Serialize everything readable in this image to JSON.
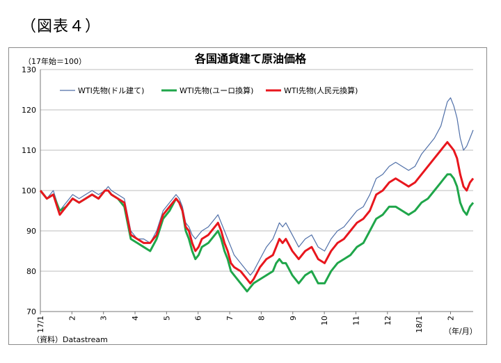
{
  "figure_label": "（図表４）",
  "source_note": "（資料）Datastream",
  "chart_data": {
    "type": "line",
    "title": "各国通貨建て原油価格",
    "y_unit_label": "（17年始＝100）",
    "x_unit_label": "（年/月）",
    "ylim": [
      70,
      130
    ],
    "yticks": [
      70,
      80,
      90,
      100,
      110,
      120,
      130
    ],
    "grid": true,
    "legend_position": "top-left",
    "x_tick_labels": [
      "17/1",
      "2",
      "3",
      "4",
      "5",
      "6",
      "7",
      "8",
      "9",
      "10",
      "11",
      "12",
      "18/1",
      "2"
    ],
    "colors": {
      "usd": "#4f6fa8",
      "eur": "#1fa64a",
      "cny": "#e8161d"
    },
    "series": [
      {
        "key": "usd",
        "name": "WTI先物(ドル建て)",
        "points": [
          [
            0,
            100
          ],
          [
            2,
            98
          ],
          [
            4,
            100
          ],
          [
            6,
            95
          ],
          [
            8,
            97
          ],
          [
            10,
            99
          ],
          [
            12,
            98
          ],
          [
            14,
            99
          ],
          [
            16,
            100
          ],
          [
            18,
            99
          ],
          [
            20,
            100
          ],
          [
            21,
            101
          ],
          [
            22,
            100
          ],
          [
            24,
            99
          ],
          [
            26,
            98
          ],
          [
            28,
            90
          ],
          [
            30,
            88
          ],
          [
            32,
            88
          ],
          [
            34,
            87
          ],
          [
            36,
            90
          ],
          [
            38,
            95
          ],
          [
            40,
            97
          ],
          [
            42,
            99
          ],
          [
            43,
            98
          ],
          [
            44,
            96
          ],
          [
            45,
            92
          ],
          [
            46,
            91
          ],
          [
            47,
            89
          ],
          [
            48,
            88
          ],
          [
            49,
            89
          ],
          [
            50,
            90
          ],
          [
            52,
            91
          ],
          [
            54,
            93
          ],
          [
            55,
            94
          ],
          [
            56,
            92
          ],
          [
            57,
            90
          ],
          [
            58,
            88
          ],
          [
            59,
            86
          ],
          [
            60,
            84
          ],
          [
            62,
            82
          ],
          [
            64,
            80
          ],
          [
            65,
            79
          ],
          [
            66,
            80
          ],
          [
            68,
            83
          ],
          [
            70,
            86
          ],
          [
            72,
            88
          ],
          [
            73,
            90
          ],
          [
            74,
            92
          ],
          [
            75,
            91
          ],
          [
            76,
            92
          ],
          [
            78,
            89
          ],
          [
            80,
            86
          ],
          [
            82,
            88
          ],
          [
            84,
            89
          ],
          [
            86,
            86
          ],
          [
            88,
            85
          ],
          [
            90,
            88
          ],
          [
            92,
            90
          ],
          [
            94,
            91
          ],
          [
            96,
            93
          ],
          [
            98,
            95
          ],
          [
            100,
            96
          ],
          [
            102,
            99
          ],
          [
            104,
            103
          ],
          [
            106,
            104
          ],
          [
            108,
            106
          ],
          [
            110,
            107
          ],
          [
            112,
            106
          ],
          [
            114,
            105
          ],
          [
            116,
            106
          ],
          [
            118,
            109
          ],
          [
            120,
            111
          ],
          [
            122,
            113
          ],
          [
            124,
            116
          ],
          [
            125,
            119
          ],
          [
            126,
            122
          ],
          [
            127,
            123
          ],
          [
            128,
            121
          ],
          [
            129,
            118
          ],
          [
            130,
            113
          ],
          [
            131,
            110
          ],
          [
            132,
            111
          ],
          [
            133,
            113
          ],
          [
            134,
            115
          ]
        ]
      },
      {
        "key": "eur",
        "name": "WTI先物(ユーロ換算)",
        "points": [
          [
            0,
            100
          ],
          [
            2,
            98
          ],
          [
            4,
            99
          ],
          [
            6,
            95
          ],
          [
            8,
            96
          ],
          [
            10,
            98
          ],
          [
            12,
            97
          ],
          [
            14,
            98
          ],
          [
            16,
            99
          ],
          [
            18,
            98
          ],
          [
            20,
            100
          ],
          [
            21,
            100
          ],
          [
            22,
            99
          ],
          [
            24,
            98
          ],
          [
            26,
            96
          ],
          [
            28,
            88
          ],
          [
            30,
            87
          ],
          [
            32,
            86
          ],
          [
            34,
            85
          ],
          [
            36,
            88
          ],
          [
            38,
            93
          ],
          [
            40,
            95
          ],
          [
            42,
            98
          ],
          [
            43,
            97
          ],
          [
            44,
            95
          ],
          [
            45,
            90
          ],
          [
            46,
            88
          ],
          [
            47,
            85
          ],
          [
            48,
            83
          ],
          [
            49,
            84
          ],
          [
            50,
            86
          ],
          [
            52,
            87
          ],
          [
            54,
            89
          ],
          [
            55,
            90
          ],
          [
            56,
            88
          ],
          [
            57,
            85
          ],
          [
            58,
            83
          ],
          [
            59,
            80
          ],
          [
            60,
            79
          ],
          [
            62,
            77
          ],
          [
            64,
            75
          ],
          [
            65,
            76
          ],
          [
            66,
            77
          ],
          [
            68,
            78
          ],
          [
            70,
            79
          ],
          [
            72,
            80
          ],
          [
            73,
            82
          ],
          [
            74,
            83
          ],
          [
            75,
            82
          ],
          [
            76,
            82
          ],
          [
            78,
            79
          ],
          [
            80,
            77
          ],
          [
            82,
            79
          ],
          [
            84,
            80
          ],
          [
            86,
            77
          ],
          [
            88,
            77
          ],
          [
            90,
            80
          ],
          [
            92,
            82
          ],
          [
            94,
            83
          ],
          [
            96,
            84
          ],
          [
            98,
            86
          ],
          [
            100,
            87
          ],
          [
            102,
            90
          ],
          [
            104,
            93
          ],
          [
            106,
            94
          ],
          [
            108,
            96
          ],
          [
            110,
            96
          ],
          [
            112,
            95
          ],
          [
            114,
            94
          ],
          [
            116,
            95
          ],
          [
            118,
            97
          ],
          [
            120,
            98
          ],
          [
            122,
            100
          ],
          [
            124,
            102
          ],
          [
            125,
            103
          ],
          [
            126,
            104
          ],
          [
            127,
            104
          ],
          [
            128,
            103
          ],
          [
            129,
            101
          ],
          [
            130,
            97
          ],
          [
            131,
            95
          ],
          [
            132,
            94
          ],
          [
            133,
            96
          ],
          [
            134,
            97
          ]
        ]
      },
      {
        "key": "cny",
        "name": "WTI先物(人民元換算)",
        "points": [
          [
            0,
            100
          ],
          [
            2,
            98
          ],
          [
            4,
            99
          ],
          [
            6,
            94
          ],
          [
            8,
            96
          ],
          [
            10,
            98
          ],
          [
            12,
            97
          ],
          [
            14,
            98
          ],
          [
            16,
            99
          ],
          [
            18,
            98
          ],
          [
            20,
            100
          ],
          [
            21,
            100
          ],
          [
            22,
            99
          ],
          [
            24,
            98
          ],
          [
            26,
            97
          ],
          [
            28,
            89
          ],
          [
            30,
            88
          ],
          [
            32,
            87
          ],
          [
            34,
            87
          ],
          [
            36,
            89
          ],
          [
            38,
            94
          ],
          [
            40,
            96
          ],
          [
            42,
            98
          ],
          [
            43,
            97
          ],
          [
            44,
            95
          ],
          [
            45,
            91
          ],
          [
            46,
            90
          ],
          [
            47,
            87
          ],
          [
            48,
            85
          ],
          [
            49,
            86
          ],
          [
            50,
            88
          ],
          [
            52,
            89
          ],
          [
            54,
            91
          ],
          [
            55,
            92
          ],
          [
            56,
            90
          ],
          [
            57,
            87
          ],
          [
            58,
            85
          ],
          [
            59,
            82
          ],
          [
            60,
            81
          ],
          [
            62,
            80
          ],
          [
            64,
            78
          ],
          [
            65,
            77
          ],
          [
            66,
            78
          ],
          [
            68,
            81
          ],
          [
            70,
            83
          ],
          [
            72,
            84
          ],
          [
            73,
            86
          ],
          [
            74,
            88
          ],
          [
            75,
            87
          ],
          [
            76,
            88
          ],
          [
            78,
            85
          ],
          [
            80,
            83
          ],
          [
            82,
            85
          ],
          [
            84,
            86
          ],
          [
            86,
            83
          ],
          [
            88,
            82
          ],
          [
            90,
            85
          ],
          [
            92,
            87
          ],
          [
            94,
            88
          ],
          [
            96,
            90
          ],
          [
            98,
            92
          ],
          [
            100,
            93
          ],
          [
            102,
            95
          ],
          [
            104,
            99
          ],
          [
            106,
            100
          ],
          [
            108,
            102
          ],
          [
            110,
            103
          ],
          [
            112,
            102
          ],
          [
            114,
            101
          ],
          [
            116,
            102
          ],
          [
            118,
            104
          ],
          [
            120,
            106
          ],
          [
            122,
            108
          ],
          [
            124,
            110
          ],
          [
            125,
            111
          ],
          [
            126,
            112
          ],
          [
            127,
            111
          ],
          [
            128,
            110
          ],
          [
            129,
            108
          ],
          [
            130,
            104
          ],
          [
            131,
            101
          ],
          [
            132,
            100
          ],
          [
            133,
            102
          ],
          [
            134,
            103
          ]
        ]
      }
    ]
  }
}
